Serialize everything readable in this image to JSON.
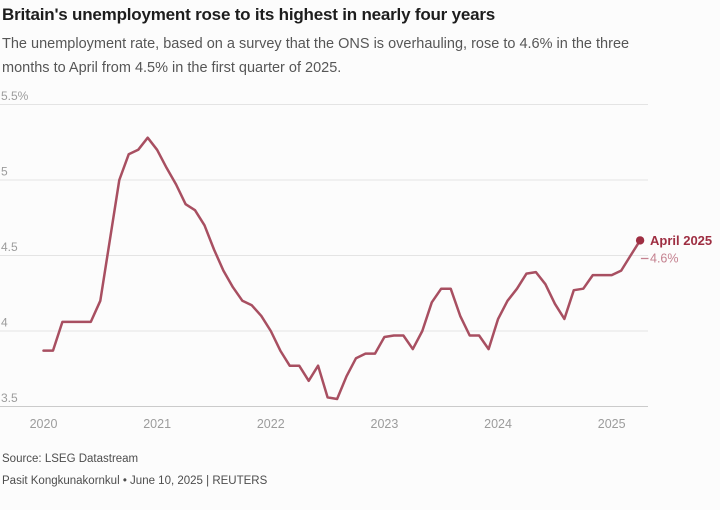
{
  "header": {
    "title": "Britain's unemployment rose to its highest in nearly four years",
    "subtitle_line1": "The unemployment rate, based on a survey that the ONS is overhauling, rose to 4.6% in the three",
    "subtitle_line2": "months to April from 4.5% in the first quarter of 2025."
  },
  "chart_data": {
    "type": "line",
    "unit": "%",
    "frequency": "monthly",
    "x_start": "2020-01",
    "x_end": "2025-04",
    "values": [
      3.87,
      3.87,
      4.06,
      4.06,
      4.06,
      4.06,
      4.2,
      4.6,
      5.0,
      5.17,
      5.2,
      5.28,
      5.2,
      5.08,
      4.97,
      4.84,
      4.8,
      4.7,
      4.54,
      4.4,
      4.29,
      4.2,
      4.17,
      4.1,
      4.0,
      3.87,
      3.77,
      3.77,
      3.67,
      3.77,
      3.56,
      3.55,
      3.7,
      3.82,
      3.85,
      3.85,
      3.96,
      3.97,
      3.97,
      3.88,
      4.0,
      4.19,
      4.28,
      4.28,
      4.1,
      3.97,
      3.97,
      3.88,
      4.08,
      4.2,
      4.28,
      4.38,
      4.39,
      4.31,
      4.18,
      4.08,
      4.27,
      4.28,
      4.37,
      4.37,
      4.37,
      4.4,
      4.5,
      4.6
    ],
    "ylim": [
      3.5,
      5.5
    ],
    "grid": true,
    "legend": false,
    "y_axis": {
      "ticks": [
        {
          "label": "5.5%",
          "value": 5.5
        },
        {
          "label": "5",
          "value": 5.0
        },
        {
          "label": "4.5",
          "value": 4.5
        },
        {
          "label": "4",
          "value": 4.0
        },
        {
          "label": "3.5",
          "value": 3.5
        }
      ],
      "baseline_value": 3.5
    },
    "x_axis": {
      "ticks": [
        {
          "label": "2020",
          "month_index": 0
        },
        {
          "label": "2021",
          "month_index": 12
        },
        {
          "label": "2022",
          "month_index": 24
        },
        {
          "label": "2023",
          "month_index": 36
        },
        {
          "label": "2024",
          "month_index": 48
        },
        {
          "label": "2025",
          "month_index": 60
        }
      ]
    },
    "annotation": {
      "label": "April 2025",
      "value_label": "4.6%"
    },
    "style": {
      "line_color": "#a84f61",
      "accent_color": "#9e2e42",
      "value_label_color": "#c4818f",
      "gridline_color": "#e4e4e4",
      "axisline_color": "#cbcbcb",
      "tick_label_color": "#9c9c9c"
    }
  },
  "footer": {
    "source": "Source: LSEG Datastream",
    "byline": "Pasit Kongkunakornkul • June 10, 2025 | REUTERS"
  }
}
